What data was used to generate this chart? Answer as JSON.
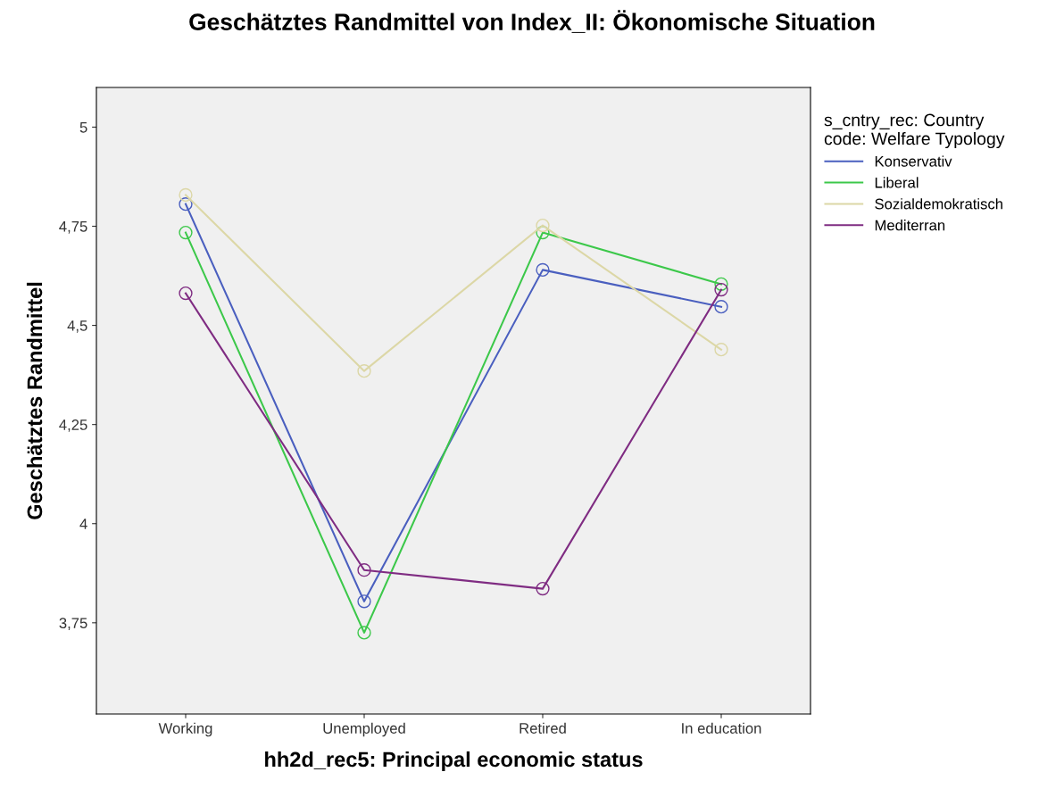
{
  "chart_data": {
    "type": "line",
    "title": "Geschätztes Randmittel von Index_II: Ökonomische Situation",
    "xlabel": "hh2d_rec5: Principal economic status",
    "ylabel": "Geschätztes Randmittel",
    "legend_title": "s_cntry_rec: Country code: Welfare Typology",
    "categories": [
      "Working",
      "Unemployed",
      "Retired",
      "In education"
    ],
    "series": [
      {
        "name": "Konservativ",
        "color": "#4a5fbf",
        "values": [
          4.806,
          3.804,
          4.64,
          4.547
        ]
      },
      {
        "name": "Liberal",
        "color": "#3cc84a",
        "values": [
          4.734,
          3.725,
          4.734,
          4.604
        ]
      },
      {
        "name": "Sozialdemokratisch",
        "color": "#dcd7a6",
        "values": [
          4.829,
          4.385,
          4.752,
          4.439
        ]
      },
      {
        "name": "Mediterran",
        "color": "#7f2c82",
        "values": [
          4.581,
          3.883,
          3.836,
          4.59
        ]
      }
    ],
    "ylim": [
      3.52,
      5.1
    ],
    "yticks": [
      {
        "value": 3.75,
        "label": "3,75"
      },
      4,
      {
        "value": 4.25,
        "label": "4,25"
      },
      {
        "value": 4.5,
        "label": "4,5"
      },
      {
        "value": 4.75,
        "label": "4,75"
      },
      5
    ],
    "marker": "circle",
    "line_style": "solid",
    "grid": false,
    "legend": "right"
  }
}
